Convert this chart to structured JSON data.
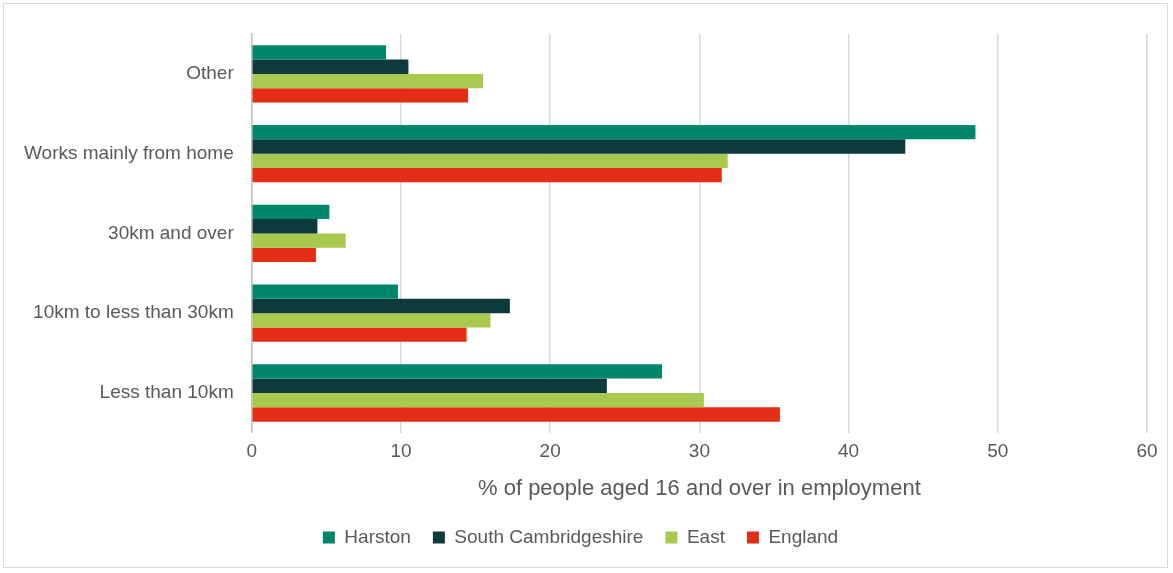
{
  "chart_data": {
    "type": "bar",
    "orientation": "horizontal",
    "xlabel": "% of people aged 16 and over in employment",
    "categories": [
      "Other",
      "Works mainly from home",
      "30km and over",
      "10km to less than 30km",
      "Less than 10km"
    ],
    "series": [
      {
        "name": "Harston",
        "color": "#00876b",
        "values": [
          9.0,
          48.5,
          5.2,
          9.8,
          27.5
        ]
      },
      {
        "name": "South Cambridgeshire",
        "color": "#0d3b3d",
        "values": [
          10.5,
          43.8,
          4.4,
          17.3,
          23.8
        ]
      },
      {
        "name": "East",
        "color": "#a9c94e",
        "values": [
          15.5,
          31.9,
          6.3,
          16.0,
          30.3
        ]
      },
      {
        "name": "England",
        "color": "#e32d14",
        "values": [
          14.5,
          31.5,
          4.3,
          14.4,
          35.4
        ]
      }
    ],
    "xlim": [
      0,
      60
    ],
    "xticks": [
      0,
      10,
      20,
      30,
      40,
      50,
      60
    ],
    "grid": "x",
    "legend": "bottom"
  }
}
